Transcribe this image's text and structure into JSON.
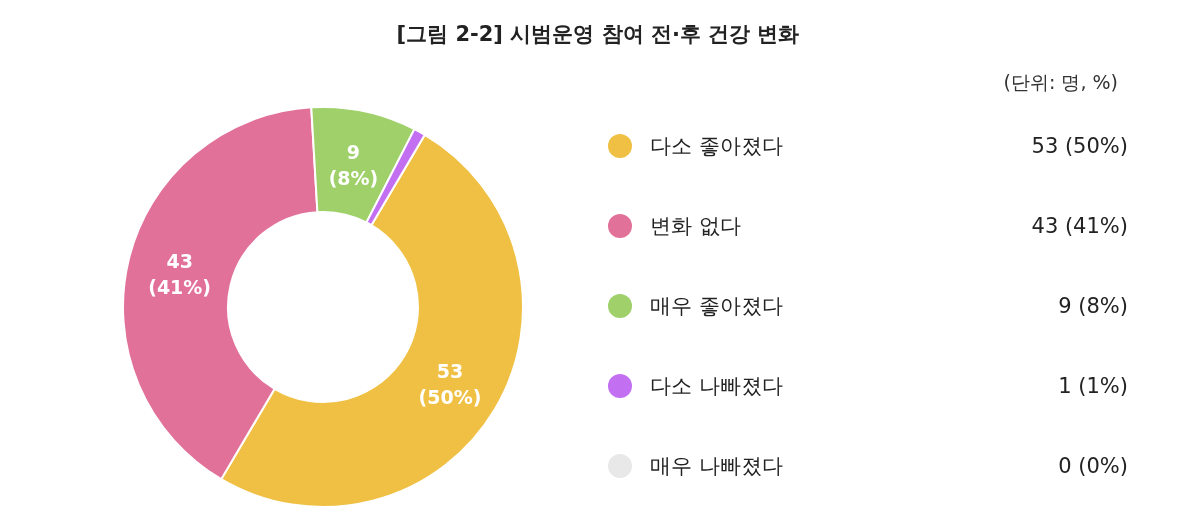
{
  "chart_data": {
    "type": "donut",
    "title": "[그림 2-2] 시범운영 참여 전·후 건강 변화",
    "annotations": [
      "(단위: 명, %)"
    ],
    "categories": [
      "다소 좋아졌다",
      "변화 없다",
      "매우 좋아졌다",
      "다소 나빠졌다",
      "매우 나빠졌다"
    ],
    "values": [
      53,
      43,
      9,
      1,
      0
    ],
    "value_labels": [
      "53 (50%)",
      "43 (41%)",
      "9 (8%)",
      "1 (1%)",
      "0 (0%)"
    ],
    "colors": [
      "#efc043",
      "#e2719a",
      "#9fd06a",
      "#c36ff2",
      "#e8e8e8"
    ],
    "legend": "right"
  }
}
